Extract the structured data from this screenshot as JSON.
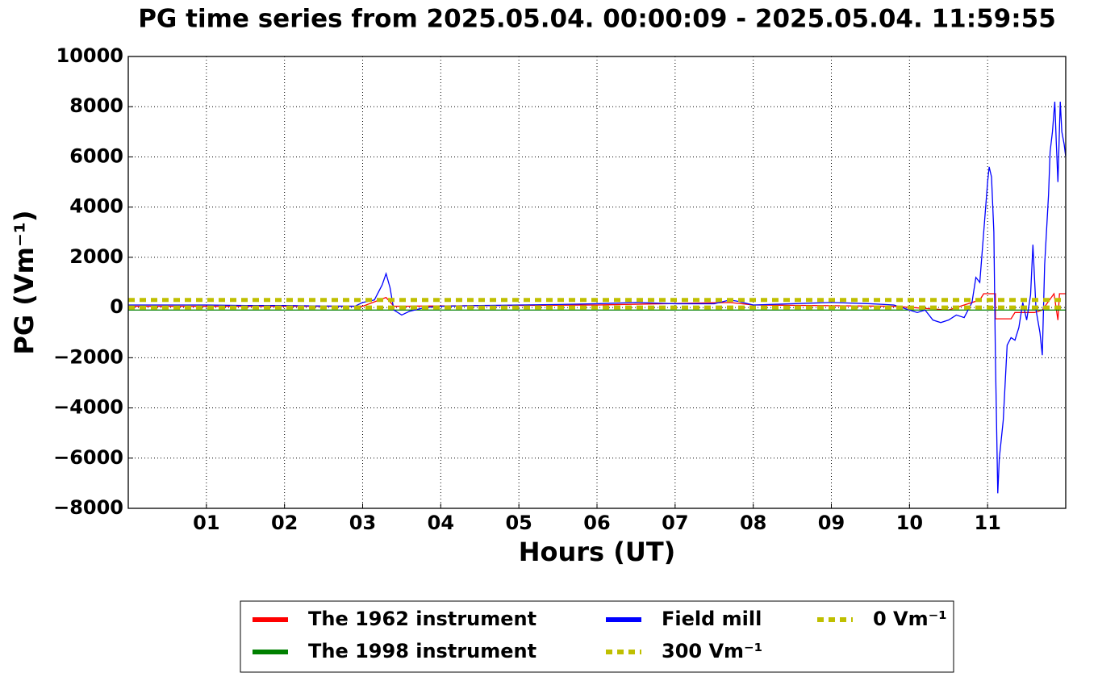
{
  "chart_data": {
    "type": "line",
    "title": "PG time series from 2025.05.04. 00:00:09 - 2025.05.04. 11:59:55",
    "x_label": "Hours (UT)",
    "y_label": "PG (Vm⁻¹)",
    "xlim": [
      0,
      12
    ],
    "ylim": [
      -8000,
      10000
    ],
    "xticks": [
      {
        "value": 1,
        "label": "01"
      },
      {
        "value": 2,
        "label": "02"
      },
      {
        "value": 3,
        "label": "03"
      },
      {
        "value": 4,
        "label": "04"
      },
      {
        "value": 5,
        "label": "05"
      },
      {
        "value": 6,
        "label": "06"
      },
      {
        "value": 7,
        "label": "07"
      },
      {
        "value": 8,
        "label": "08"
      },
      {
        "value": 9,
        "label": "09"
      },
      {
        "value": 10,
        "label": "10"
      },
      {
        "value": 11,
        "label": "11"
      }
    ],
    "yticks": [
      {
        "value": -8000,
        "label": "−8000"
      },
      {
        "value": -6000,
        "label": "−6000"
      },
      {
        "value": -4000,
        "label": "−4000"
      },
      {
        "value": -2000,
        "label": "−2000"
      },
      0,
      2000,
      4000,
      6000,
      8000,
      10000
    ],
    "grid": true,
    "series": [
      {
        "name": "The 1962 instrument",
        "color": "#ff0000",
        "linestyle": "solid",
        "x": [
          0,
          3,
          3.3,
          3.4,
          6,
          7.7,
          8,
          9.8,
          10.5,
          10.9,
          10.95,
          11.1,
          11.1,
          11.3,
          11.35,
          11.6,
          11.7,
          11.85,
          11.9,
          11.92,
          12
        ],
        "values": [
          50,
          50,
          400,
          50,
          100,
          200,
          100,
          50,
          -100,
          300,
          550,
          550,
          -450,
          -450,
          -200,
          -200,
          -100,
          550,
          -500,
          550,
          550
        ]
      },
      {
        "name": "The 1998 instrument",
        "color": "#008000",
        "linestyle": "solid",
        "x": [
          0,
          12
        ],
        "values": [
          -100,
          -100
        ]
      },
      {
        "name": "Field mill",
        "color": "#0000ff",
        "linestyle": "solid",
        "x": [
          0,
          0.5,
          1,
          1.5,
          2,
          2.5,
          2.9,
          3.0,
          3.15,
          3.25,
          3.3,
          3.35,
          3.4,
          3.5,
          3.6,
          3.8,
          4,
          4.5,
          5,
          5.5,
          6,
          6.5,
          7,
          7.5,
          7.7,
          7.8,
          8,
          8.5,
          9,
          9.5,
          9.8,
          10,
          10.1,
          10.2,
          10.3,
          10.4,
          10.5,
          10.6,
          10.7,
          10.8,
          10.85,
          10.9,
          10.95,
          11.0,
          11.02,
          11.05,
          11.08,
          11.1,
          11.13,
          11.15,
          11.2,
          11.25,
          11.3,
          11.35,
          11.4,
          11.45,
          11.5,
          11.55,
          11.58,
          11.62,
          11.67,
          11.7,
          11.73,
          11.78,
          11.8,
          11.83,
          11.86,
          11.88,
          11.9,
          11.93,
          11.95,
          11.98,
          12
        ],
        "values": [
          100,
          100,
          100,
          80,
          80,
          60,
          50,
          200,
          300,
          900,
          1350,
          800,
          -100,
          -300,
          -150,
          0,
          50,
          80,
          100,
          120,
          150,
          200,
          150,
          150,
          300,
          250,
          100,
          150,
          200,
          150,
          100,
          -100,
          -200,
          -100,
          -500,
          -600,
          -500,
          -300,
          -400,
          200,
          1200,
          1000,
          3000,
          5000,
          5600,
          5200,
          3000,
          -2000,
          -7400,
          -6000,
          -4500,
          -1500,
          -1200,
          -1300,
          -800,
          200,
          -500,
          500,
          2500,
          -100,
          -1000,
          -1900,
          1700,
          4500,
          6200,
          7000,
          8200,
          6500,
          5000,
          8200,
          7000,
          6500,
          6000
        ]
      },
      {
        "name": "300 Vm⁻¹",
        "color": "#bfbf00",
        "linestyle": "dotted",
        "x": [
          0,
          12
        ],
        "values": [
          300,
          300
        ]
      },
      {
        "name": "0 Vm⁻¹",
        "color": "#bfbf00",
        "linestyle": "dotted",
        "x": [
          0,
          12
        ],
        "values": [
          0,
          0
        ]
      }
    ]
  }
}
